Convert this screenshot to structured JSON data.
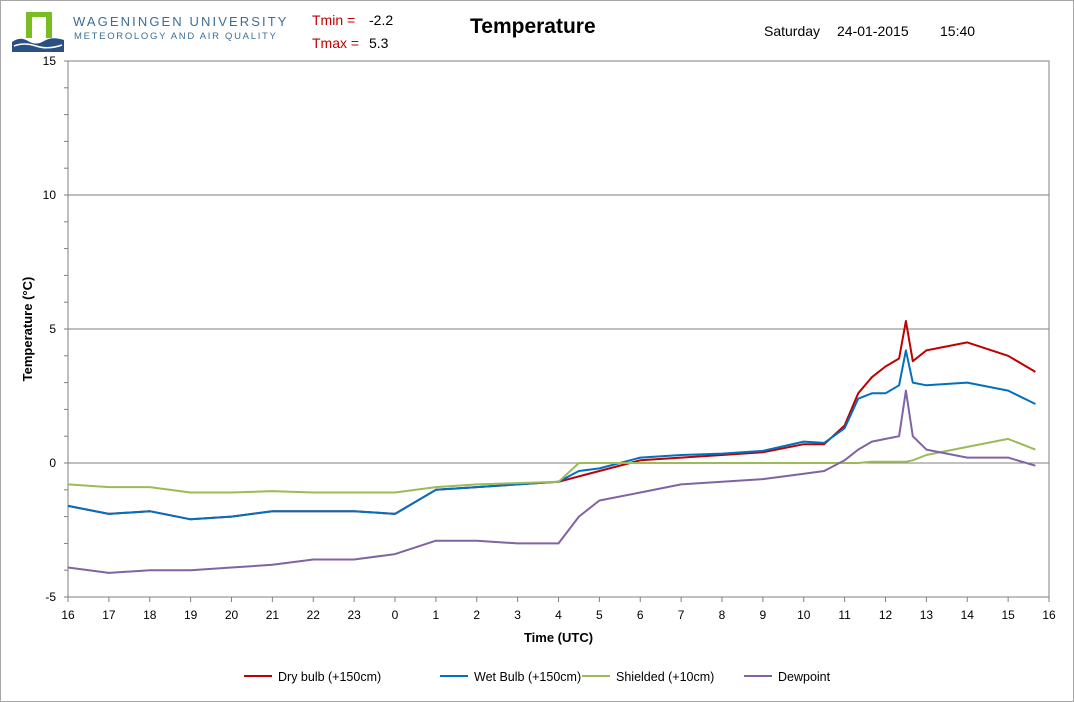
{
  "header": {
    "university": "WAGENINGEN UNIVERSITY",
    "department": "METEOROLOGY AND AIR QUALITY",
    "tmin_label": "Tmin =",
    "tmin_value": "-2.2",
    "tmax_label": "Tmax =",
    "tmax_value": "5.3",
    "day": "Saturday",
    "date": "24-01-2015",
    "time": "15:40"
  },
  "colors": {
    "dry_bulb": "#c00000",
    "wet_bulb": "#0070c0",
    "shielded": "#9bbb59",
    "dewpoint": "#8064a2",
    "gridline": "#808080",
    "logo_green": "#78be20",
    "logo_blue": "#2a5082"
  },
  "chart_data": {
    "type": "line",
    "title": "Temperature",
    "xlabel": "Time (UTC)",
    "ylabel": "Temperature (°C)",
    "ylim": [
      -5,
      15
    ],
    "yticks": [
      -5,
      0,
      5,
      10,
      15
    ],
    "xlim_hours_from_start": [
      0,
      24
    ],
    "x_tick_labels": [
      "16",
      "17",
      "18",
      "19",
      "20",
      "21",
      "22",
      "23",
      "0",
      "1",
      "2",
      "3",
      "4",
      "5",
      "6",
      "7",
      "8",
      "9",
      "10",
      "11",
      "12",
      "13",
      "14",
      "15",
      "16"
    ],
    "grid": "horizontal",
    "legend_position": "bottom",
    "x": [
      "16:00",
      "17:00",
      "18:00",
      "19:00",
      "20:00",
      "21:00",
      "22:00",
      "23:00",
      "00:00",
      "01:00",
      "02:00",
      "03:00",
      "04:00",
      "04:30",
      "05:00",
      "06:00",
      "07:00",
      "08:00",
      "09:00",
      "10:00",
      "10:30",
      "11:00",
      "11:20",
      "11:40",
      "12:00",
      "12:20",
      "12:30",
      "12:40",
      "13:00",
      "14:00",
      "15:00",
      "15:40"
    ],
    "series": [
      {
        "name": "Dry bulb (+150cm)",
        "color": "#c00000",
        "values": [
          -1.6,
          -1.9,
          -1.8,
          -2.1,
          -2.0,
          -1.8,
          -1.8,
          -1.8,
          -1.9,
          -1.0,
          -0.9,
          -0.8,
          -0.7,
          -0.5,
          -0.3,
          0.1,
          0.2,
          0.3,
          0.4,
          0.7,
          0.7,
          1.4,
          2.6,
          3.2,
          3.6,
          3.9,
          5.3,
          3.8,
          4.2,
          4.5,
          4.0,
          3.4
        ]
      },
      {
        "name": "Wet Bulb (+150cm)",
        "color": "#0070c0",
        "values": [
          -1.6,
          -1.9,
          -1.8,
          -2.1,
          -2.0,
          -1.8,
          -1.8,
          -1.8,
          -1.9,
          -1.0,
          -0.9,
          -0.8,
          -0.7,
          -0.3,
          -0.2,
          0.2,
          0.3,
          0.35,
          0.45,
          0.8,
          0.75,
          1.3,
          2.4,
          2.6,
          2.6,
          2.9,
          4.2,
          3.0,
          2.9,
          3.0,
          2.7,
          2.2
        ]
      },
      {
        "name": "Shielded (+10cm)",
        "color": "#9bbb59",
        "values": [
          -0.8,
          -0.9,
          -0.9,
          -1.1,
          -1.1,
          -1.05,
          -1.1,
          -1.1,
          -1.1,
          -0.9,
          -0.8,
          -0.75,
          -0.7,
          0.0,
          0.0,
          0.0,
          0.0,
          0.0,
          0.0,
          0.0,
          0.0,
          0.0,
          0.0,
          0.05,
          0.05,
          0.05,
          0.05,
          0.1,
          0.3,
          0.6,
          0.9,
          0.5
        ]
      },
      {
        "name": "Dewpoint",
        "color": "#8064a2",
        "values": [
          -3.9,
          -4.1,
          -4.0,
          -4.0,
          -3.9,
          -3.8,
          -3.6,
          -3.6,
          -3.4,
          -2.9,
          -2.9,
          -3.0,
          -3.0,
          -2.0,
          -1.4,
          -1.1,
          -0.8,
          -0.7,
          -0.6,
          -0.4,
          -0.3,
          0.1,
          0.5,
          0.8,
          0.9,
          1.0,
          2.7,
          1.0,
          0.5,
          0.2,
          0.2,
          -0.1
        ]
      }
    ]
  }
}
